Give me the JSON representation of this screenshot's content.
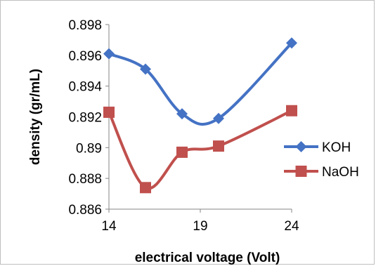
{
  "chart_data": {
    "type": "line",
    "xlabel": "electrical voltage (Volt)",
    "ylabel": "density (gr/mL)",
    "xlim": [
      14,
      24
    ],
    "ylim": [
      0.886,
      0.898
    ],
    "x_ticks": [
      "14",
      "19",
      "24"
    ],
    "y_ticks": [
      "0.886",
      "0.888",
      "0.89",
      "0.892",
      "0.894",
      "0.896",
      "0.898"
    ],
    "grid": false,
    "legend": "right",
    "series": [
      {
        "name": "KOH",
        "color": "#4472C4",
        "marker": "diamond",
        "smooth": true,
        "x": [
          14,
          16,
          18,
          20,
          24
        ],
        "y": [
          0.8961,
          0.8951,
          0.8922,
          0.8919,
          0.8968
        ]
      },
      {
        "name": "NaOH",
        "color": "#C0504D",
        "marker": "square",
        "smooth": true,
        "x": [
          14,
          16,
          18,
          20,
          24
        ],
        "y": [
          0.8923,
          0.8874,
          0.8897,
          0.8901,
          0.8924
        ]
      }
    ]
  }
}
